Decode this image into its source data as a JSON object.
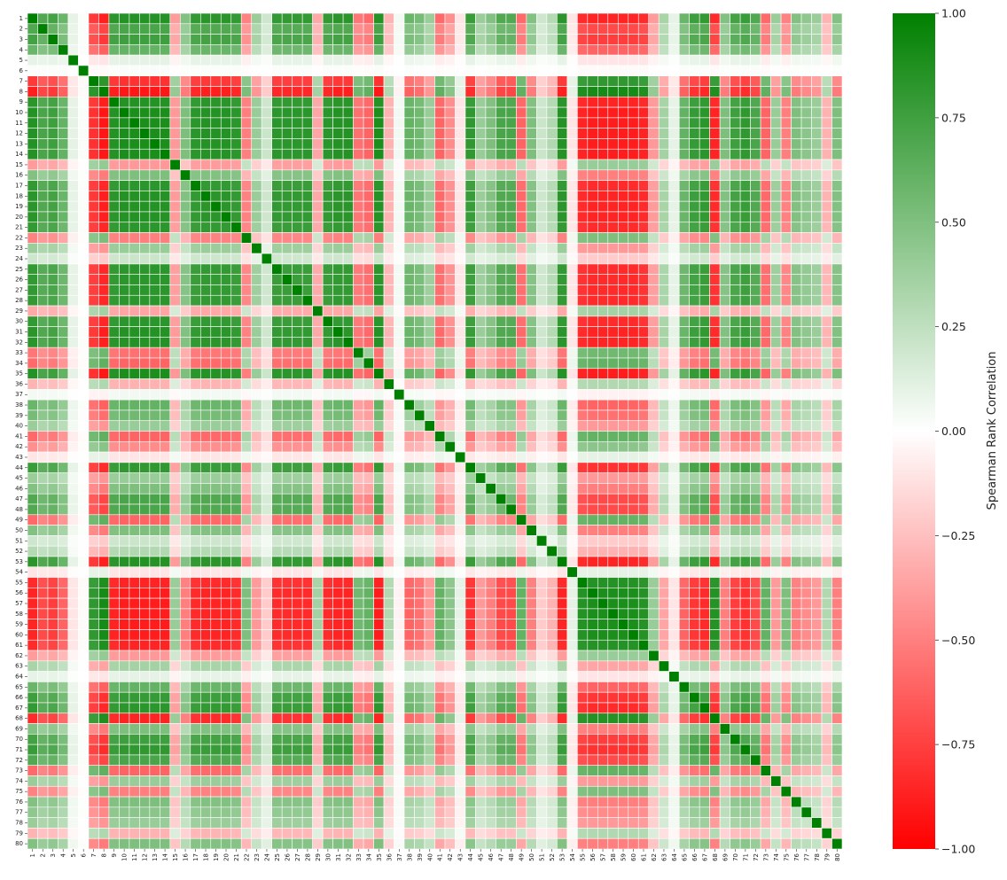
{
  "chart_data": {
    "type": "heatmap",
    "title": "",
    "xlabel": "",
    "ylabel": "",
    "n": 80,
    "labels": [
      "1",
      "2",
      "3",
      "4",
      "5",
      "6",
      "7",
      "8",
      "9",
      "10",
      "11",
      "12",
      "13",
      "14",
      "15",
      "16",
      "17",
      "18",
      "19",
      "20",
      "21",
      "22",
      "23",
      "24",
      "25",
      "26",
      "27",
      "28",
      "29",
      "30",
      "31",
      "32",
      "33",
      "34",
      "35",
      "36",
      "37",
      "38",
      "39",
      "40",
      "41",
      "42",
      "43",
      "44",
      "45",
      "46",
      "47",
      "48",
      "49",
      "50",
      "51",
      "52",
      "53",
      "54",
      "55",
      "56",
      "57",
      "58",
      "59",
      "60",
      "61",
      "62",
      "63",
      "64",
      "65",
      "66",
      "67",
      "68",
      "69",
      "70",
      "71",
      "72",
      "73",
      "74",
      "75",
      "76",
      "77",
      "78",
      "79",
      "80"
    ],
    "cluster_value_by_index": [
      0.85,
      0.7,
      0.75,
      0.6,
      0.1,
      0.02,
      -0.8,
      -0.9,
      0.85,
      0.88,
      0.88,
      0.88,
      0.88,
      0.88,
      -0.4,
      0.5,
      0.82,
      0.85,
      0.85,
      0.85,
      0.82,
      -0.5,
      0.4,
      0.2,
      0.82,
      0.82,
      0.82,
      0.82,
      -0.35,
      0.82,
      0.85,
      0.85,
      -0.55,
      -0.6,
      0.88,
      -0.3,
      0.05,
      0.6,
      0.55,
      0.4,
      -0.6,
      -0.45,
      -0.1,
      0.8,
      0.4,
      0.5,
      0.7,
      0.7,
      -0.6,
      0.5,
      0.2,
      0.3,
      0.85,
      -0.1,
      -0.85,
      -0.88,
      -0.88,
      -0.88,
      -0.88,
      -0.88,
      -0.85,
      -0.4,
      0.35,
      0.1,
      0.6,
      0.78,
      0.82,
      -0.85,
      0.5,
      0.75,
      0.8,
      0.7,
      -0.6,
      0.4,
      -0.5,
      0.5,
      0.45,
      0.4,
      -0.3,
      0.5
    ],
    "diagonal": 1,
    "colorbar": {
      "label": "Spearman Rank Correlation",
      "ticks": [
        "1.00",
        "0.75",
        "0.50",
        "0.25",
        "0.00",
        "−0.25",
        "−0.50",
        "−0.75",
        "−1.00"
      ],
      "tick_values": [
        1,
        0.75,
        0.5,
        0.25,
        0,
        -0.25,
        -0.5,
        -0.75,
        -1
      ],
      "vmin": -1,
      "vmax": 1
    },
    "colors": {
      "negative": "#ff0000",
      "neutral": "#ffffff",
      "positive": "#008000"
    }
  }
}
